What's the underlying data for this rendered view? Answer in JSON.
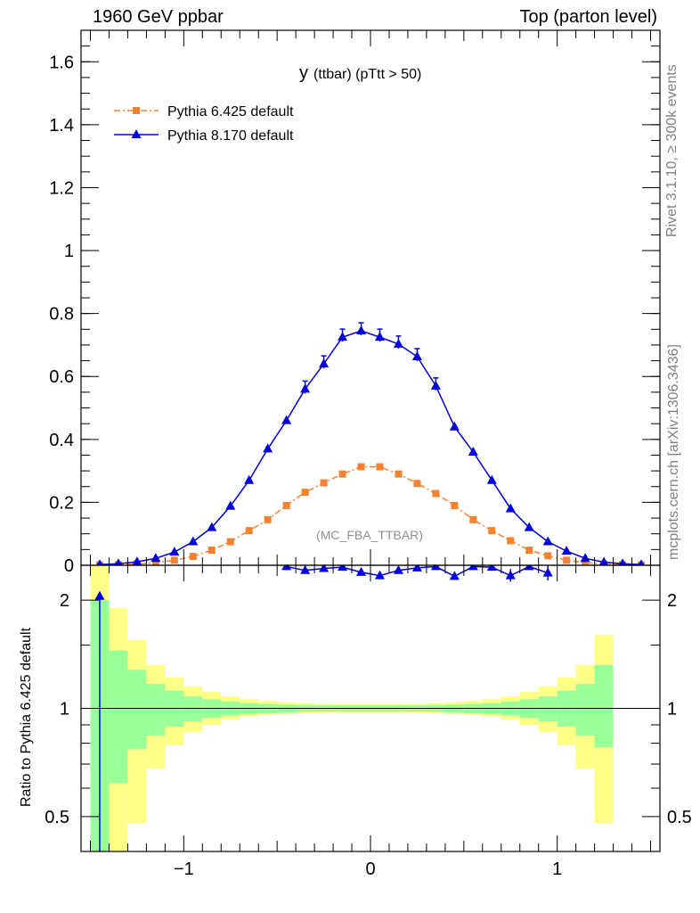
{
  "header": {
    "left": "1960 GeV ppbar",
    "right": "Top (parton level)"
  },
  "side_labels": {
    "rivet": "Rivet 3.1.10, ≥ 300k events",
    "mcplots": "mcplots.cern.ch [arXiv:1306.3436]"
  },
  "chart_data": [
    {
      "type": "line",
      "title_main": "y",
      "title_detail": "(ttbar) (pTtt > 50)",
      "annotation": "(MC_FBA_TTBAR)",
      "xlim": [
        -1.55,
        1.55
      ],
      "ylim": [
        0,
        1.7
      ],
      "x_ticks": [
        -1,
        0,
        1
      ],
      "y_ticks": [
        0,
        0.2,
        0.4,
        0.6,
        0.8,
        1,
        1.2,
        1.4,
        1.6
      ],
      "y_tick_labels": [
        "0",
        "0.2",
        "0.4",
        "0.6",
        "0.8",
        "1",
        "1.2",
        "1.4",
        "1.6"
      ],
      "legend_position": "top-left",
      "series": [
        {
          "name": "Pythia 6.425 default",
          "color": "#f58231",
          "marker": "square",
          "line_style": "dash-dot",
          "x": [
            -1.45,
            -1.35,
            -1.25,
            -1.15,
            -1.05,
            -0.95,
            -0.85,
            -0.75,
            -0.65,
            -0.55,
            -0.45,
            -0.35,
            -0.25,
            -0.15,
            -0.05,
            0.05,
            0.15,
            0.25,
            0.35,
            0.45,
            0.55,
            0.65,
            0.75,
            0.85,
            0.95,
            1.05,
            1.15,
            1.25,
            1.35,
            1.45
          ],
          "y": [
            0.001,
            0.002,
            0.004,
            0.008,
            0.016,
            0.028,
            0.048,
            0.075,
            0.11,
            0.145,
            0.19,
            0.232,
            0.262,
            0.29,
            0.313,
            0.313,
            0.29,
            0.26,
            0.228,
            0.19,
            0.145,
            0.11,
            0.078,
            0.048,
            0.03,
            0.016,
            0.008,
            0.004,
            0.002,
            0.001
          ]
        },
        {
          "name": "Pythia 8.170 default",
          "color": "#0000dd",
          "marker": "triangle",
          "line_style": "solid",
          "x": [
            -1.45,
            -1.35,
            -1.25,
            -1.15,
            -1.05,
            -0.95,
            -0.85,
            -0.75,
            -0.65,
            -0.55,
            -0.45,
            -0.35,
            -0.25,
            -0.15,
            -0.05,
            0.05,
            0.15,
            0.25,
            0.35,
            0.45,
            0.55,
            0.65,
            0.75,
            0.85,
            0.95,
            1.05,
            1.15,
            1.25,
            1.35,
            1.45
          ],
          "y": [
            0.002,
            0.005,
            0.011,
            0.022,
            0.042,
            0.075,
            0.12,
            0.188,
            0.27,
            0.37,
            0.46,
            0.56,
            0.64,
            0.725,
            0.745,
            0.725,
            0.703,
            0.663,
            0.57,
            0.44,
            0.36,
            0.27,
            0.18,
            0.12,
            0.075,
            0.045,
            0.022,
            0.01,
            0.005,
            0.002
          ]
        }
      ]
    },
    {
      "type": "line",
      "ylabel": "Ratio to Pythia 6.425 default",
      "y_scale": "log",
      "xlim": [
        -1.55,
        1.55
      ],
      "ylim": [
        0.4,
        2.5
      ],
      "x_ticks": [
        -1,
        0,
        1
      ],
      "x_tick_labels": [
        "−1",
        "0",
        "1"
      ],
      "y_ticks": [
        0.5,
        1,
        2
      ],
      "y_tick_labels": [
        "0.5",
        "1",
        "2"
      ],
      "reference_line": 1,
      "bands": {
        "bin_edges": [
          -1.5,
          -1.4,
          -1.3,
          -1.2,
          -1.1,
          -1.0,
          -0.9,
          -0.8,
          -0.7,
          -0.6,
          -0.5,
          -0.4,
          -0.3,
          -0.2,
          -0.1,
          0.0,
          0.1,
          0.2,
          0.3,
          0.4,
          0.5,
          0.6,
          0.7,
          0.8,
          0.9,
          1.0,
          1.1,
          1.2,
          1.3
        ],
        "inner_color": "#99ff99",
        "outer_color": "#ffff88",
        "inner_up": [
          2.0,
          1.45,
          1.28,
          1.17,
          1.12,
          1.08,
          1.06,
          1.045,
          1.035,
          1.03,
          1.025,
          1.022,
          1.02,
          1.02,
          1.02,
          1.02,
          1.02,
          1.02,
          1.022,
          1.025,
          1.03,
          1.035,
          1.045,
          1.06,
          1.08,
          1.12,
          1.17,
          1.32
        ],
        "inner_low": [
          0.4,
          0.62,
          0.77,
          0.84,
          0.89,
          0.92,
          0.94,
          0.955,
          0.965,
          0.97,
          0.975,
          0.978,
          0.98,
          0.98,
          0.98,
          0.98,
          0.98,
          0.98,
          0.978,
          0.975,
          0.97,
          0.965,
          0.955,
          0.94,
          0.92,
          0.89,
          0.84,
          0.78
        ],
        "outer_up": [
          2.5,
          1.9,
          1.55,
          1.32,
          1.22,
          1.15,
          1.11,
          1.08,
          1.06,
          1.05,
          1.04,
          1.035,
          1.03,
          1.03,
          1.03,
          1.03,
          1.03,
          1.03,
          1.035,
          1.04,
          1.05,
          1.06,
          1.08,
          1.11,
          1.15,
          1.22,
          1.32,
          1.6
        ],
        "outer_low": [
          0.4,
          0.4,
          0.48,
          0.68,
          0.79,
          0.86,
          0.9,
          0.93,
          0.95,
          0.96,
          0.965,
          0.97,
          0.972,
          0.975,
          0.975,
          0.975,
          0.975,
          0.972,
          0.97,
          0.965,
          0.96,
          0.95,
          0.93,
          0.9,
          0.86,
          0.79,
          0.68,
          0.48
        ]
      },
      "series": [
        {
          "name": "Pythia 8.170 default",
          "color": "#0000dd",
          "marker": "triangle",
          "x": [
            -1.45,
            -0.45,
            -0.35,
            -0.25,
            -0.15,
            -0.05,
            0.05,
            0.15,
            0.25,
            0.35,
            0.45,
            0.55,
            0.65,
            0.75,
            0.85,
            0.95
          ],
          "y": [
            2.05,
            2.48,
            2.42,
            2.45,
            2.47,
            2.39,
            2.34,
            2.42,
            2.46,
            2.48,
            2.33,
            2.48,
            2.47,
            2.34,
            2.48,
            2.38
          ]
        }
      ]
    }
  ]
}
